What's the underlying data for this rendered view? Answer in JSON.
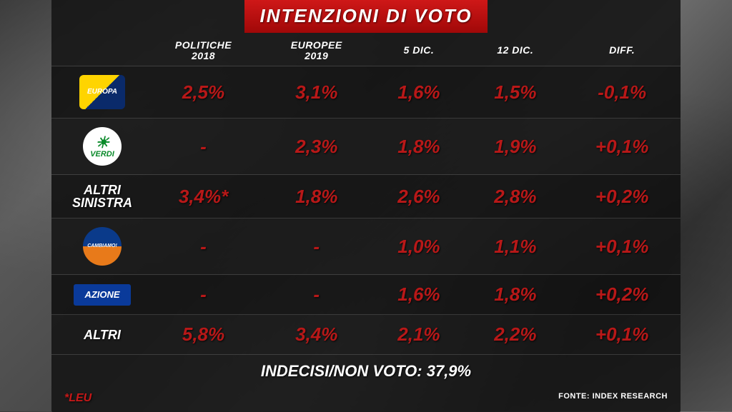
{
  "title": "INTENZIONI DI VOTO",
  "columns": {
    "c1a": "POLITICHE",
    "c1b": "2018",
    "c2a": "EUROPEE",
    "c2b": "2019",
    "c3": "5 DIC.",
    "c4": "12 DIC.",
    "c5": "DIFF."
  },
  "rows": [
    {
      "party_type": "logo",
      "logo_class": "logo-europa",
      "logo_text": "EUROPA",
      "v": [
        "2,5%",
        "3,1%",
        "1,6%",
        "1,5%",
        "-0,1%"
      ]
    },
    {
      "party_type": "logo",
      "logo_class": "logo-verdi",
      "logo_text": "VERDI",
      "v": [
        "-",
        "2,3%",
        "1,8%",
        "1,9%",
        "+0,1%"
      ]
    },
    {
      "party_type": "text",
      "label_a": "ALTRI",
      "label_b": "SINISTRA",
      "v": [
        "3,4%*",
        "1,8%",
        "2,6%",
        "2,8%",
        "+0,2%"
      ]
    },
    {
      "party_type": "logo",
      "logo_class": "logo-cambiamo",
      "logo_text": "CAMBIAMO!",
      "v": [
        "-",
        "-",
        "1,0%",
        "1,1%",
        "+0,1%"
      ]
    },
    {
      "party_type": "logo",
      "logo_class": "logo-azione",
      "logo_text": "AZIONE",
      "v": [
        "-",
        "-",
        "1,6%",
        "1,8%",
        "+0,2%"
      ]
    },
    {
      "party_type": "text",
      "label_a": "ALTRI",
      "label_b": "",
      "v": [
        "5,8%",
        "3,4%",
        "2,1%",
        "2,2%",
        "+0,1%"
      ]
    }
  ],
  "footer": "INDECISI/NON VOTO: 37,9%",
  "note_left": "*LEU",
  "note_right": "FONTE: INDEX RESEARCH"
}
